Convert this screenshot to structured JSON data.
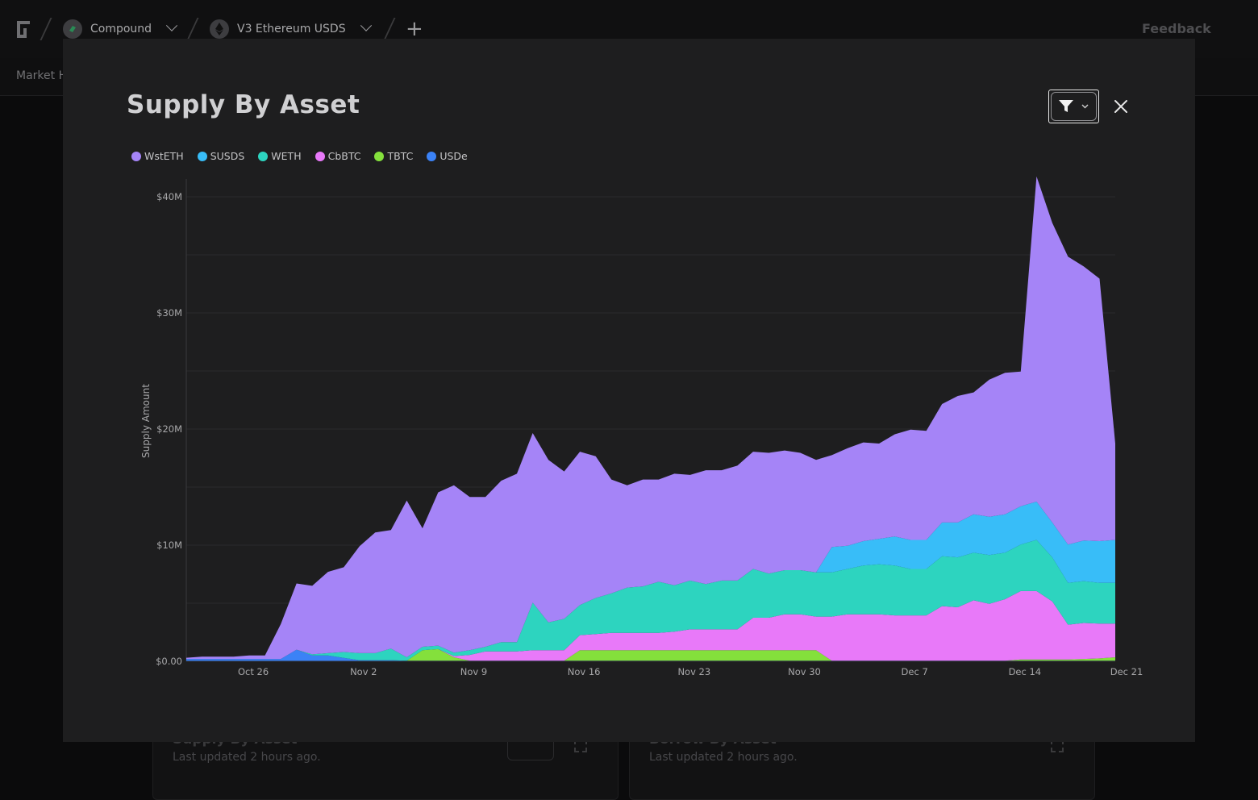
{
  "app": {
    "breadcrumbs": [
      "Compound",
      "V3 Ethereum USDS"
    ],
    "feedback_label": "Feedback",
    "subnav_label": "Market H"
  },
  "bg_cards": [
    {
      "title": "Supply By Asset",
      "updated": "Last updated 2 hours ago."
    },
    {
      "title": "Borrow By Asset",
      "updated": "Last updated 2 hours ago."
    }
  ],
  "modal": {
    "title": "Supply By Asset"
  },
  "colors": {
    "WstETH": "#a584f7",
    "SUSDS": "#38bdf8",
    "WETH": "#2dd4bf",
    "CbBTC": "#e879f9",
    "TBTC": "#84e03c",
    "USDe": "#3b82f6",
    "modal_bg": "#1e1e1f",
    "page_bg": "#0b0b0c"
  },
  "chart_data": {
    "type": "area",
    "stacked": true,
    "ylabel": "Supply Amount",
    "xlabel": "",
    "ylim": [
      0,
      40000000
    ],
    "y_ticks": [
      {
        "value": 0,
        "label": "$0.00"
      },
      {
        "value": 10000000,
        "label": "$10M"
      },
      {
        "value": 20000000,
        "label": "$20M"
      },
      {
        "value": 30000000,
        "label": "$30M"
      },
      {
        "value": 40000000,
        "label": "$40M"
      }
    ],
    "x_ticks": [
      "Oct 26",
      "Nov 2",
      "Nov 9",
      "Nov 16",
      "Nov 23",
      "Nov 30",
      "Dec 7",
      "Dec 14",
      "Dec 21"
    ],
    "x_tick_days": [
      4,
      11,
      18,
      25,
      32,
      39,
      46,
      53,
      60
    ],
    "legend_position": "top-left",
    "grid": true,
    "series_order": [
      "USDe",
      "TBTC",
      "CbBTC",
      "WETH",
      "SUSDS",
      "WstETH"
    ],
    "legend_order": [
      "WstETH",
      "SUSDS",
      "WETH",
      "CbBTC",
      "TBTC",
      "USDe"
    ],
    "series": [
      {
        "name": "USDe",
        "values": [
          0.2,
          0.2,
          0.2,
          0.2,
          0.2,
          0.2,
          0.2,
          1.0,
          0.5,
          0.5,
          0.3,
          0.1,
          0.1,
          0.1,
          0.05,
          0.05,
          0.05,
          0.05,
          0.05,
          0.05,
          0.05,
          0.05,
          0.05,
          0.05,
          0.05,
          0.05,
          0.05,
          0.05,
          0.05,
          0.05,
          0.05,
          0.05,
          0.05,
          0.05,
          0.05,
          0.05,
          0.05,
          0.05,
          0.05,
          0.05,
          0.05,
          0.05,
          0.05,
          0.05,
          0.05,
          0.05,
          0.05,
          0.05,
          0.05,
          0.05,
          0.05,
          0.05,
          0.05,
          0.05,
          0.05,
          0.05,
          0.05,
          0.05,
          0.05,
          0.05
        ]
      },
      {
        "name": "TBTC",
        "values": [
          0,
          0,
          0,
          0,
          0,
          0,
          0,
          0,
          0,
          0,
          0,
          0,
          0,
          0,
          0,
          0.9,
          1.0,
          0.3,
          0,
          0,
          0,
          0,
          0,
          0,
          0,
          0.9,
          0.9,
          0.9,
          0.9,
          0.9,
          0.9,
          0.9,
          0.9,
          0.9,
          0.9,
          0.9,
          0.9,
          0.9,
          0.9,
          0.9,
          0.9,
          0,
          0,
          0,
          0,
          0,
          0,
          0,
          0,
          0,
          0,
          0,
          0,
          0.1,
          0.1,
          0.1,
          0.1,
          0.15,
          0.2,
          0.3
        ]
      },
      {
        "name": "CbBTC",
        "values": [
          0,
          0,
          0,
          0,
          0,
          0,
          0,
          0,
          0,
          0,
          0,
          0,
          0,
          0,
          0,
          0,
          0,
          0.1,
          0.5,
          0.8,
          0.8,
          0.8,
          0.9,
          0.9,
          0.9,
          1.3,
          1.4,
          1.5,
          1.5,
          1.5,
          1.5,
          1.6,
          1.8,
          1.8,
          1.8,
          1.8,
          2.8,
          2.8,
          3.1,
          3.1,
          2.9,
          3.8,
          4.0,
          4.0,
          4.0,
          3.9,
          3.9,
          3.9,
          4.7,
          4.6,
          5.2,
          4.9,
          5.3,
          5.9,
          5.9,
          5.0,
          3.0,
          3.1,
          3.0,
          2.9
        ]
      },
      {
        "name": "WETH",
        "values": [
          0,
          0,
          0,
          0,
          0,
          0,
          0,
          0,
          0.1,
          0.2,
          0.5,
          0.6,
          0.6,
          1.0,
          0.3,
          0.3,
          0.3,
          0.3,
          0.4,
          0.4,
          0.8,
          0.8,
          4.1,
          2.4,
          2.7,
          2.6,
          3.1,
          3.4,
          3.9,
          4.0,
          4.4,
          4.0,
          4.2,
          3.9,
          4.2,
          4.2,
          4.2,
          3.8,
          3.8,
          3.8,
          3.8,
          3.8,
          3.9,
          4.2,
          4.3,
          4.3,
          4.0,
          4.0,
          4.3,
          4.3,
          4.1,
          4.2,
          4.0,
          4.0,
          4.4,
          3.8,
          3.6,
          3.6,
          3.5,
          3.5
        ]
      },
      {
        "name": "SUSDS",
        "values": [
          0,
          0,
          0,
          0,
          0,
          0,
          0,
          0,
          0,
          0,
          0,
          0,
          0,
          0,
          0,
          0,
          0,
          0,
          0,
          0,
          0,
          0,
          0,
          0,
          0,
          0,
          0,
          0,
          0,
          0,
          0,
          0,
          0,
          0,
          0,
          0,
          0,
          0,
          0,
          0,
          0,
          2.2,
          2.0,
          2.1,
          2.2,
          2.5,
          2.5,
          2.5,
          2.9,
          3.0,
          3.3,
          3.3,
          3.3,
          3.3,
          3.3,
          3.0,
          3.3,
          3.5,
          3.6,
          3.7
        ]
      },
      {
        "name": "WstETH",
        "values": [
          0.1,
          0.2,
          0.2,
          0.2,
          0.3,
          0.3,
          3.0,
          5.7,
          5.9,
          7.0,
          7.3,
          9.2,
          10.4,
          10.2,
          13.5,
          10.2,
          13.2,
          14.4,
          13.2,
          12.9,
          13.9,
          14.5,
          14.6,
          14.0,
          12.7,
          13.2,
          12.2,
          9.8,
          8.8,
          9.2,
          8.8,
          9.6,
          9.1,
          9.8,
          9.5,
          9.9,
          10.1,
          10.4,
          10.3,
          10.1,
          9.7,
          7.9,
          8.4,
          8.5,
          8.2,
          8.8,
          9.5,
          9.4,
          10.2,
          10.9,
          10.5,
          11.8,
          12.2,
          11.6,
          28.0,
          25.8,
          24.8,
          23.6,
          22.6,
          8.3
        ]
      }
    ]
  }
}
